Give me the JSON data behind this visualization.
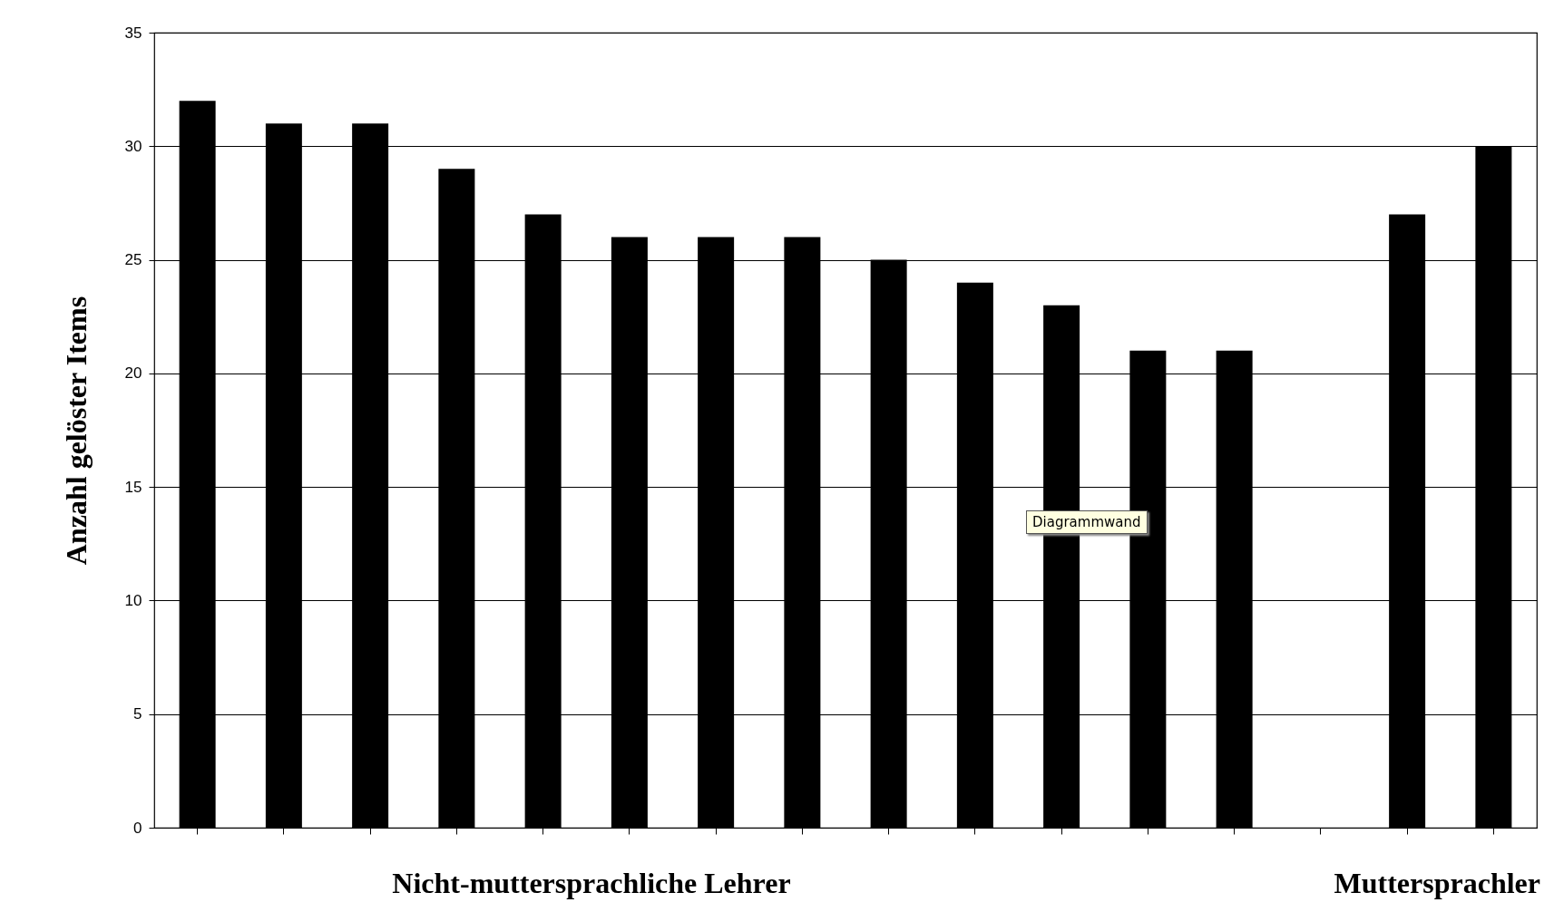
{
  "chart_data": {
    "type": "bar",
    "ylabel": "Anzahl gelöster Items",
    "categories": [
      null,
      null,
      null,
      null,
      null,
      null,
      null,
      null,
      null,
      null,
      null,
      null,
      null,
      null,
      null,
      null
    ],
    "values": [
      32,
      31,
      31,
      29,
      27,
      26,
      26,
      26,
      25,
      24,
      23,
      21,
      21,
      null,
      27,
      30
    ],
    "color": "#000000",
    "ylim": [
      0,
      35
    ],
    "yticks": [
      0,
      5,
      10,
      15,
      20,
      25,
      30,
      35
    ],
    "grid": "y",
    "annotations": [
      "Nicht-muttersprachliche Lehrer",
      "Muttersprachler",
      "Diagrammwand"
    ]
  }
}
